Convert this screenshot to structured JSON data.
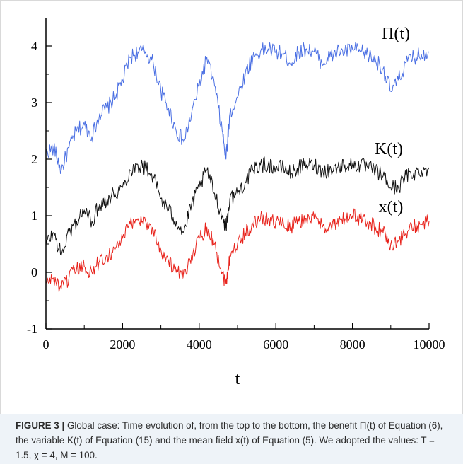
{
  "chart_data": {
    "type": "line",
    "xlabel": "t",
    "ylabel": "",
    "xlim": [
      0,
      10000
    ],
    "ylim": [
      -1,
      4.5
    ],
    "x_ticks": [
      0,
      2000,
      4000,
      6000,
      8000,
      10000
    ],
    "y_ticks": [
      -1,
      0,
      1,
      2,
      3,
      4
    ],
    "grid": false,
    "series": [
      {
        "name": "Π(t)",
        "color": "#4a6fe3",
        "x": [
          0,
          200,
          400,
          600,
          800,
          1000,
          1200,
          1400,
          1600,
          1800,
          2000,
          2200,
          2400,
          2600,
          2800,
          3000,
          3200,
          3400,
          3600,
          3800,
          4000,
          4200,
          4400,
          4600,
          4700,
          4800,
          5000,
          5200,
          5400,
          5600,
          5800,
          6000,
          6200,
          6400,
          6600,
          6800,
          7000,
          7200,
          7400,
          7600,
          7800,
          8000,
          8200,
          8400,
          8600,
          8800,
          9000,
          9200,
          9400,
          9600,
          9800,
          10000
        ],
        "y": [
          2.1,
          2.2,
          1.8,
          2.2,
          2.5,
          2.6,
          2.4,
          2.8,
          2.9,
          3.1,
          3.4,
          3.8,
          3.9,
          3.9,
          3.7,
          3.2,
          2.9,
          2.5,
          2.3,
          2.8,
          3.3,
          3.8,
          3.3,
          2.5,
          2.0,
          2.8,
          3.1,
          3.5,
          3.8,
          3.9,
          3.95,
          3.9,
          3.85,
          3.7,
          3.9,
          3.95,
          3.9,
          3.7,
          3.8,
          3.9,
          3.9,
          3.95,
          3.9,
          3.85,
          3.75,
          3.6,
          3.2,
          3.4,
          3.7,
          3.8,
          3.85,
          3.9
        ]
      },
      {
        "name": "K(t)",
        "color": "#111111",
        "x": [
          0,
          200,
          400,
          600,
          800,
          1000,
          1200,
          1400,
          1600,
          1800,
          2000,
          2200,
          2400,
          2600,
          2800,
          3000,
          3200,
          3400,
          3600,
          3800,
          4000,
          4200,
          4400,
          4600,
          4700,
          4800,
          5000,
          5200,
          5400,
          5600,
          5800,
          6000,
          6200,
          6400,
          6600,
          6800,
          7000,
          7200,
          7400,
          7600,
          7800,
          8000,
          8200,
          8400,
          8600,
          8800,
          9000,
          9200,
          9400,
          9600,
          9800,
          10000
        ],
        "y": [
          0.5,
          0.7,
          0.3,
          0.7,
          0.9,
          1.1,
          0.9,
          1.2,
          1.3,
          1.4,
          1.5,
          1.8,
          1.9,
          1.85,
          1.7,
          1.3,
          1.1,
          0.9,
          0.7,
          1.2,
          1.5,
          1.8,
          1.4,
          1.0,
          0.8,
          1.3,
          1.4,
          1.6,
          1.8,
          1.9,
          1.9,
          1.85,
          1.85,
          1.75,
          1.85,
          1.9,
          1.9,
          1.8,
          1.8,
          1.85,
          1.9,
          1.9,
          1.9,
          1.85,
          1.8,
          1.7,
          1.5,
          1.5,
          1.7,
          1.75,
          1.8,
          1.85
        ]
      },
      {
        "name": "x(t)",
        "color": "#e8221b",
        "x": [
          0,
          200,
          400,
          600,
          800,
          1000,
          1200,
          1400,
          1600,
          1800,
          2000,
          2200,
          2400,
          2600,
          2800,
          3000,
          3200,
          3400,
          3600,
          3800,
          4000,
          4200,
          4400,
          4600,
          4700,
          4800,
          5000,
          5200,
          5400,
          5600,
          5800,
          6000,
          6200,
          6400,
          6600,
          6800,
          7000,
          7200,
          7400,
          7600,
          7800,
          8000,
          8200,
          8400,
          8600,
          8800,
          9000,
          9200,
          9400,
          9600,
          9800,
          10000
        ],
        "y": [
          -0.2,
          -0.1,
          -0.3,
          -0.1,
          0.05,
          0.1,
          0.0,
          0.2,
          0.3,
          0.4,
          0.6,
          0.85,
          0.95,
          0.9,
          0.75,
          0.4,
          0.2,
          0.0,
          -0.1,
          0.3,
          0.6,
          0.8,
          0.5,
          0.0,
          -0.2,
          0.3,
          0.5,
          0.7,
          0.85,
          0.95,
          0.95,
          0.9,
          0.85,
          0.8,
          0.9,
          0.95,
          0.95,
          0.85,
          0.8,
          0.85,
          0.95,
          1.0,
          0.95,
          0.9,
          0.8,
          0.7,
          0.5,
          0.55,
          0.7,
          0.8,
          0.85,
          0.9
        ]
      }
    ]
  },
  "caption": {
    "label": "FIGURE 3 |",
    "text": " Global case: Time evolution of, from the top to the bottom, the benefit Π(t) of Equation (6), the variable K(t) of Equation (15) and the mean field x(t) of Equation (5).  We adopted the values: T = 1.5, χ = 4, M = 100."
  }
}
